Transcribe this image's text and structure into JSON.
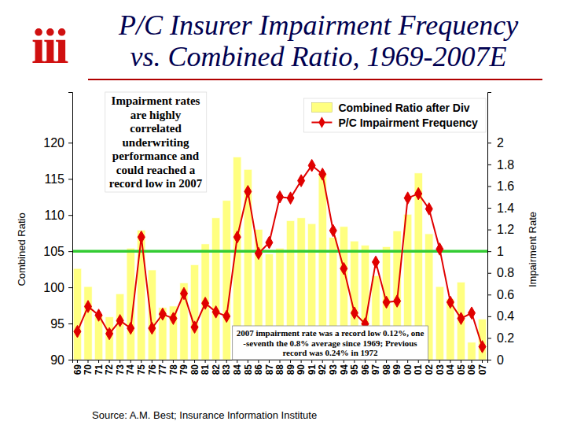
{
  "logo": "iii",
  "source": "Source: A.M. Best; Insurance Information Institute",
  "chart_data": {
    "type": "bar",
    "title": [
      "P/C Insurer Impairment Frequency",
      "vs. Combined Ratio, 1969-2007E"
    ],
    "y_label": "Combined Ratio",
    "y2_label": "Impairment Rate",
    "categories": [
      "69",
      "70",
      "71",
      "72",
      "73",
      "74",
      "75",
      "76",
      "77",
      "78",
      "79",
      "80",
      "81",
      "82",
      "83",
      "84",
      "85",
      "86",
      "87",
      "88",
      "89",
      "90",
      "91",
      "92",
      "93",
      "94",
      "95",
      "96",
      "97",
      "98",
      "99",
      "00",
      "01",
      "02",
      "03",
      "04",
      "05",
      "06",
      "07"
    ],
    "series": [
      {
        "name": "Combined Ratio after Div",
        "type": "bar",
        "color": "#ffff80",
        "values": [
          102.6,
          100.1,
          96.2,
          95.9,
          99.1,
          105.4,
          107.9,
          102.4,
          97.2,
          97.4,
          100.6,
          103.1,
          106.0,
          109.6,
          112.0,
          118.0,
          116.3,
          108.0,
          104.6,
          105.4,
          109.2,
          109.6,
          108.8,
          115.7,
          106.9,
          108.4,
          106.4,
          105.8,
          101.6,
          105.6,
          107.8,
          110.1,
          115.8,
          107.4,
          100.1,
          98.4,
          100.7,
          92.4,
          95.6
        ]
      },
      {
        "name": "P/C Impairment Frequency",
        "type": "line",
        "color": "#e00000",
        "marker": "diamond",
        "axis": "y2",
        "values": [
          0.26,
          0.49,
          0.41,
          0.24,
          0.36,
          0.29,
          1.13,
          0.29,
          0.42,
          0.38,
          0.61,
          0.3,
          0.52,
          0.44,
          0.4,
          1.13,
          1.55,
          0.98,
          1.08,
          1.5,
          1.49,
          1.65,
          1.79,
          1.71,
          1.19,
          0.84,
          0.43,
          0.33,
          0.9,
          0.53,
          0.54,
          1.49,
          1.53,
          1.39,
          1.02,
          0.53,
          0.38,
          0.43,
          0.12
        ]
      }
    ],
    "ylim": [
      90,
      127
    ],
    "yticks": [
      90,
      95,
      100,
      105,
      110,
      115,
      120
    ],
    "y2lim": [
      0,
      2.4667
    ],
    "y2ticks": [
      0,
      0.2,
      0.4,
      0.6,
      0.8,
      1,
      1.2,
      1.4,
      1.6,
      1.8,
      2
    ],
    "reference_lines": [
      {
        "value": 105,
        "color": "#33cc33"
      }
    ],
    "annotations": [
      {
        "lines": [
          "Impairment rates",
          "are highly",
          "correlated",
          "underwriting",
          "performance and",
          "could reached a",
          "record low in 2007"
        ]
      },
      {
        "lines": [
          "2007 impairment rate was a record low 0.12%, one",
          "-seventh the 0.8% average since 1969; Previous",
          "record was 0.24% in 1972"
        ]
      }
    ],
    "legend": "top-right",
    "grid": false
  }
}
